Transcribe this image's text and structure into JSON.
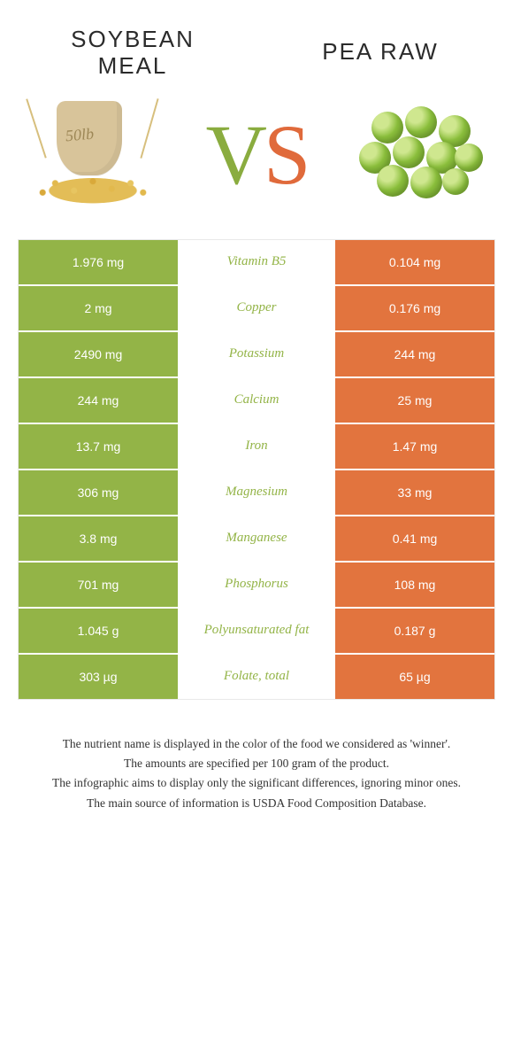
{
  "colors": {
    "soybean": "#93b447",
    "pea": "#e2743e",
    "row_gap": "#ffffff",
    "table_border": "#e9e9e9",
    "text_dark": "#2b2b2b"
  },
  "header": {
    "left_title": "Soybean meal",
    "right_title": "Pea raw",
    "vs_v": "V",
    "vs_s": "S",
    "sack_label": "50lb"
  },
  "rows": [
    {
      "left": "1.976 mg",
      "name": "Vitamin B5",
      "right": "0.104 mg",
      "winner": "soybean"
    },
    {
      "left": "2 mg",
      "name": "Copper",
      "right": "0.176 mg",
      "winner": "soybean"
    },
    {
      "left": "2490 mg",
      "name": "Potassium",
      "right": "244 mg",
      "winner": "soybean"
    },
    {
      "left": "244 mg",
      "name": "Calcium",
      "right": "25 mg",
      "winner": "soybean"
    },
    {
      "left": "13.7 mg",
      "name": "Iron",
      "right": "1.47 mg",
      "winner": "soybean"
    },
    {
      "left": "306 mg",
      "name": "Magnesium",
      "right": "33 mg",
      "winner": "soybean"
    },
    {
      "left": "3.8 mg",
      "name": "Manganese",
      "right": "0.41 mg",
      "winner": "soybean"
    },
    {
      "left": "701 mg",
      "name": "Phosphorus",
      "right": "108 mg",
      "winner": "soybean"
    },
    {
      "left": "1.045 g",
      "name": "Polyunsaturated fat",
      "right": "0.187 g",
      "winner": "soybean"
    },
    {
      "left": "303 µg",
      "name": "Folate, total",
      "right": "65 µg",
      "winner": "soybean"
    }
  ],
  "notes": [
    "The nutrient name is displayed in the color of the food we considered as 'winner'.",
    "The amounts are specified per 100 gram of the product.",
    "The infographic aims to display only the significant differences, ignoring minor ones.",
    "The main source of information is USDA Food Composition Database."
  ]
}
